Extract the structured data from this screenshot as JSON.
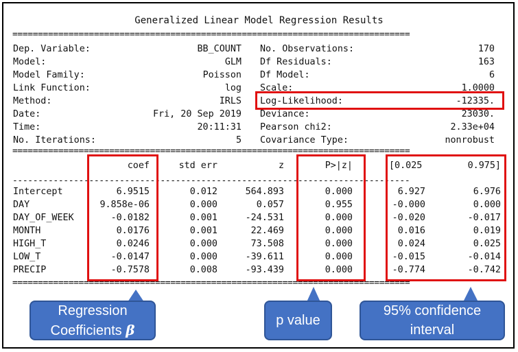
{
  "title": "Generalized Linear Model Regression Results",
  "separator_double": "==============================================================================",
  "separator_single": "------------------------------------------------------------------------------",
  "info_left": [
    {
      "label": "Dep. Variable:",
      "value": "BB_COUNT"
    },
    {
      "label": "Model:",
      "value": "GLM"
    },
    {
      "label": "Model Family:",
      "value": "Poisson"
    },
    {
      "label": "Link Function:",
      "value": "log"
    },
    {
      "label": "Method:",
      "value": "IRLS"
    },
    {
      "label": "Date:",
      "value": "Fri, 20 Sep 2019"
    },
    {
      "label": "Time:",
      "value": "20:11:31"
    },
    {
      "label": "No. Iterations:",
      "value": "5"
    }
  ],
  "info_right": [
    {
      "label": "No. Observations:",
      "value": "170"
    },
    {
      "label": "Df Residuals:",
      "value": "163"
    },
    {
      "label": "Df Model:",
      "value": "6"
    },
    {
      "label": "Scale:",
      "value": "1.0000"
    },
    {
      "label": "Log-Likelihood:",
      "value": "-12335."
    },
    {
      "label": "Deviance:",
      "value": "23030."
    },
    {
      "label": "Pearson chi2:",
      "value": "2.33e+04"
    },
    {
      "label": "Covariance Type:",
      "value": "nonrobust"
    }
  ],
  "columns": [
    "coef",
    "std err",
    "z",
    "P>|z|",
    "[0.025",
    "0.975]"
  ],
  "rows": [
    {
      "name": "Intercept",
      "coef": "6.9515",
      "std_err": "0.012",
      "z": "564.893",
      "p": "0.000",
      "lo": "6.927",
      "hi": "6.976"
    },
    {
      "name": "DAY",
      "coef": "9.858e-06",
      "std_err": "0.000",
      "z": "0.057",
      "p": "0.955",
      "lo": "-0.000",
      "hi": "0.000"
    },
    {
      "name": "DAY_OF_WEEK",
      "coef": "-0.0182",
      "std_err": "0.001",
      "z": "-24.531",
      "p": "0.000",
      "lo": "-0.020",
      "hi": "-0.017"
    },
    {
      "name": "MONTH",
      "coef": "0.0176",
      "std_err": "0.001",
      "z": "22.469",
      "p": "0.000",
      "lo": "0.016",
      "hi": "0.019"
    },
    {
      "name": "HIGH_T",
      "coef": "0.0246",
      "std_err": "0.000",
      "z": "73.508",
      "p": "0.000",
      "lo": "0.024",
      "hi": "0.025"
    },
    {
      "name": "LOW_T",
      "coef": "-0.0147",
      "std_err": "0.000",
      "z": "-39.611",
      "p": "0.000",
      "lo": "-0.015",
      "hi": "-0.014"
    },
    {
      "name": "PRECIP",
      "coef": "-0.7578",
      "std_err": "0.008",
      "z": "-93.439",
      "p": "0.000",
      "lo": "-0.774",
      "hi": "-0.742"
    }
  ],
  "callouts": {
    "coef_line1": "Regression",
    "coef_line2": "Coefficients",
    "coef_symbol": "β",
    "pvalue": "p value",
    "ci_line1": "95% confidence",
    "ci_line2": "interval"
  },
  "colors": {
    "highlight": "#e01010",
    "callout_fill": "#4472c4",
    "callout_border": "#2f5597"
  }
}
